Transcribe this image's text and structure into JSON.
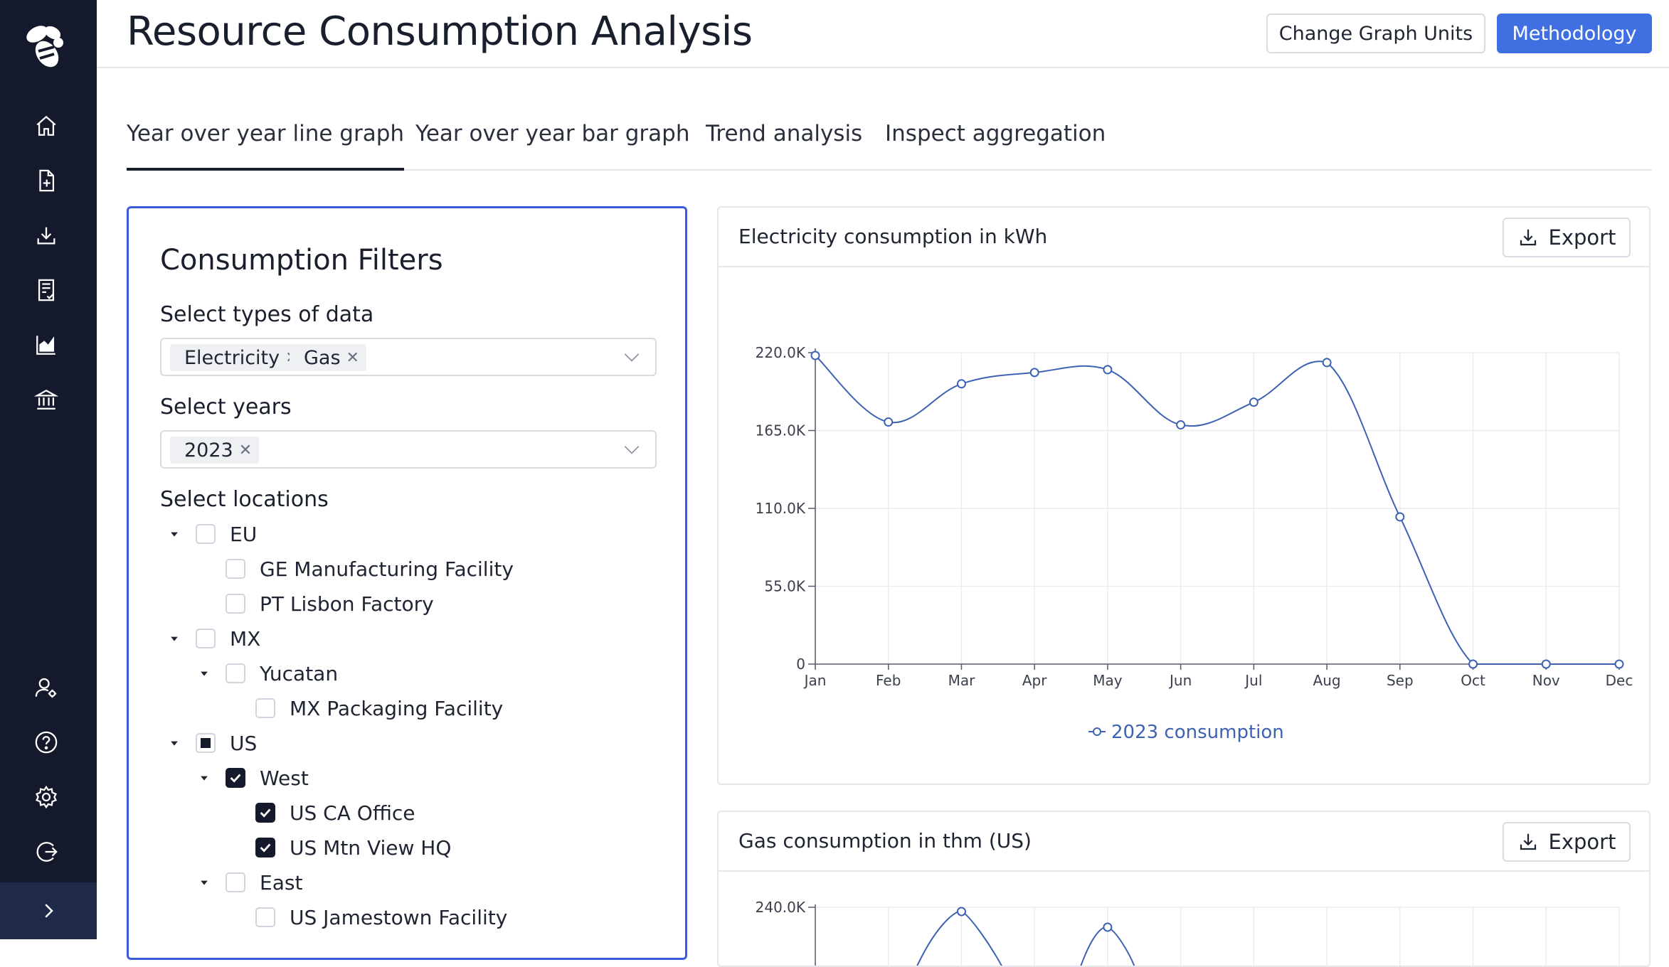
{
  "app": {
    "title": "Resource Consumption Analysis",
    "accent_color": "#3f6fe0",
    "sidebar_color": "#141a2b"
  },
  "sidebar": {
    "logo": "bee-logo",
    "top_items": [
      {
        "icon": "home-icon"
      },
      {
        "icon": "file-add-icon"
      },
      {
        "icon": "download-icon"
      },
      {
        "icon": "report-icon"
      },
      {
        "icon": "chart-icon"
      },
      {
        "icon": "bank-icon"
      }
    ],
    "bottom_items": [
      {
        "icon": "user-settings-icon"
      },
      {
        "icon": "help-icon"
      },
      {
        "icon": "gear-icon"
      },
      {
        "icon": "logout-icon"
      }
    ],
    "expand_icon": "chevron-right-icon"
  },
  "header": {
    "change_units_label": "Change Graph Units",
    "methodology_label": "Methodology"
  },
  "tabs": [
    {
      "label": "Year over year line graph",
      "active": true
    },
    {
      "label": "Year over year bar graph",
      "active": false
    },
    {
      "label": "Trend analysis",
      "active": false
    },
    {
      "label": "Inspect aggregation",
      "active": false
    }
  ],
  "filters": {
    "title": "Consumption Filters",
    "types_label": "Select types of data",
    "types_selected": [
      "Electricity",
      "Gas"
    ],
    "years_label": "Select years",
    "years_selected": [
      "2023"
    ],
    "locations_label": "Select locations",
    "locations": [
      {
        "label": "EU",
        "level": 0,
        "expandable": true,
        "state": "unchecked"
      },
      {
        "label": "GE Manufacturing Facility",
        "level": 1,
        "expandable": false,
        "state": "unchecked"
      },
      {
        "label": "PT Lisbon Factory",
        "level": 1,
        "expandable": false,
        "state": "unchecked"
      },
      {
        "label": "MX",
        "level": 0,
        "expandable": true,
        "state": "unchecked"
      },
      {
        "label": "Yucatan",
        "level": 1,
        "expandable": true,
        "state": "unchecked"
      },
      {
        "label": "MX Packaging Facility",
        "level": 2,
        "expandable": false,
        "state": "unchecked"
      },
      {
        "label": "US",
        "level": 0,
        "expandable": true,
        "state": "partial"
      },
      {
        "label": "West",
        "level": 1,
        "expandable": true,
        "state": "checked"
      },
      {
        "label": "US CA Office",
        "level": 2,
        "expandable": false,
        "state": "checked"
      },
      {
        "label": "US Mtn View HQ",
        "level": 2,
        "expandable": false,
        "state": "checked"
      },
      {
        "label": "East",
        "level": 1,
        "expandable": true,
        "state": "unchecked"
      },
      {
        "label": "US Jamestown Facility",
        "level": 2,
        "expandable": false,
        "state": "unchecked"
      }
    ]
  },
  "export_label": "Export",
  "chart_data": [
    {
      "type": "line",
      "title": "Electricity consumption in kWh",
      "categories": [
        "Jan",
        "Feb",
        "Mar",
        "Apr",
        "May",
        "Jun",
        "Jul",
        "Aug",
        "Sep",
        "Oct",
        "Nov",
        "Dec"
      ],
      "y_ticks": [
        "0",
        "55.0K",
        "110.0K",
        "165.0K",
        "220.0K"
      ],
      "ylim": [
        0,
        220000
      ],
      "grid": true,
      "legend": "bottom-center",
      "series": [
        {
          "name": "2023 consumption",
          "color": "#3d62b3",
          "values": [
            218000,
            171000,
            198000,
            206000,
            208000,
            169000,
            185000,
            213000,
            104000,
            0,
            0,
            0
          ]
        }
      ]
    },
    {
      "type": "line",
      "title": "Gas consumption in thm (US)",
      "y_ticks": [
        "240.0K"
      ],
      "grid": true,
      "series": [
        {
          "color": "#3d62b3"
        }
      ]
    }
  ]
}
